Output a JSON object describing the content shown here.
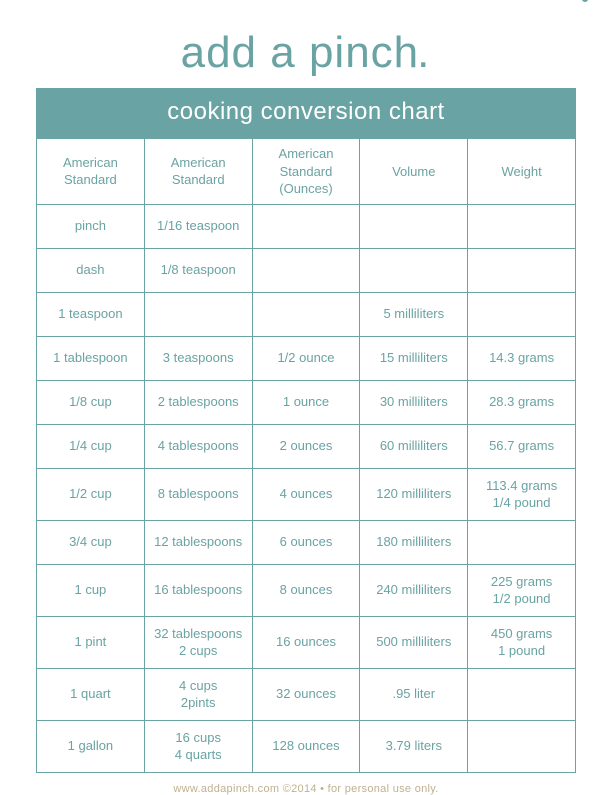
{
  "brand": {
    "logo_text": "add a pinch",
    "accent_color": "#6aa3a3",
    "bg_color": "#ffffff"
  },
  "chart": {
    "type": "table",
    "title": "cooking conversion chart",
    "columns": [
      "American Standard",
      "American Standard",
      "American Standard (Ounces)",
      "Volume",
      "Weight"
    ],
    "rows": [
      [
        "pinch",
        "1/16 teaspoon",
        "",
        "",
        ""
      ],
      [
        "dash",
        "1/8 teaspoon",
        "",
        "",
        ""
      ],
      [
        "1 teaspoon",
        "",
        "",
        "5 milliliters",
        ""
      ],
      [
        "1 tablespoon",
        "3 teaspoons",
        "1/2 ounce",
        "15 milliliters",
        "14.3 grams"
      ],
      [
        "1/8 cup",
        "2 tablespoons",
        "1 ounce",
        "30 milliliters",
        "28.3 grams"
      ],
      [
        "1/4 cup",
        "4 tablespoons",
        "2 ounces",
        "60 milliliters",
        "56.7 grams"
      ],
      [
        "1/2 cup",
        "8 tablespoons",
        "4 ounces",
        "120 milliliters",
        "113.4 grams\n1/4 pound"
      ],
      [
        "3/4 cup",
        "12 tablespoons",
        "6 ounces",
        "180 milliliters",
        ""
      ],
      [
        "1 cup",
        "16 tablespoons",
        "8 ounces",
        "240 milliliters",
        "225 grams\n1/2 pound"
      ],
      [
        "1 pint",
        "32 tablespoons\n2 cups",
        "16 ounces",
        "500 milliliters",
        "450 grams\n1 pound"
      ],
      [
        "1 quart",
        "4 cups\n2pints",
        "32 ounces",
        ".95 liter",
        ""
      ],
      [
        "1 gallon",
        "16 cups\n4 quarts",
        "128 ounces",
        "3.79 liters",
        ""
      ]
    ],
    "tall_rows": [
      6,
      8,
      9,
      10,
      11
    ],
    "border_color": "#6aa3a3",
    "header_bg": "#6aa3a3",
    "header_text_color": "#ffffff",
    "cell_fontsize": 13
  },
  "footer": {
    "text": "www.addapinch.com ©2014  •  for personal use only.",
    "color": "#c0b090"
  }
}
